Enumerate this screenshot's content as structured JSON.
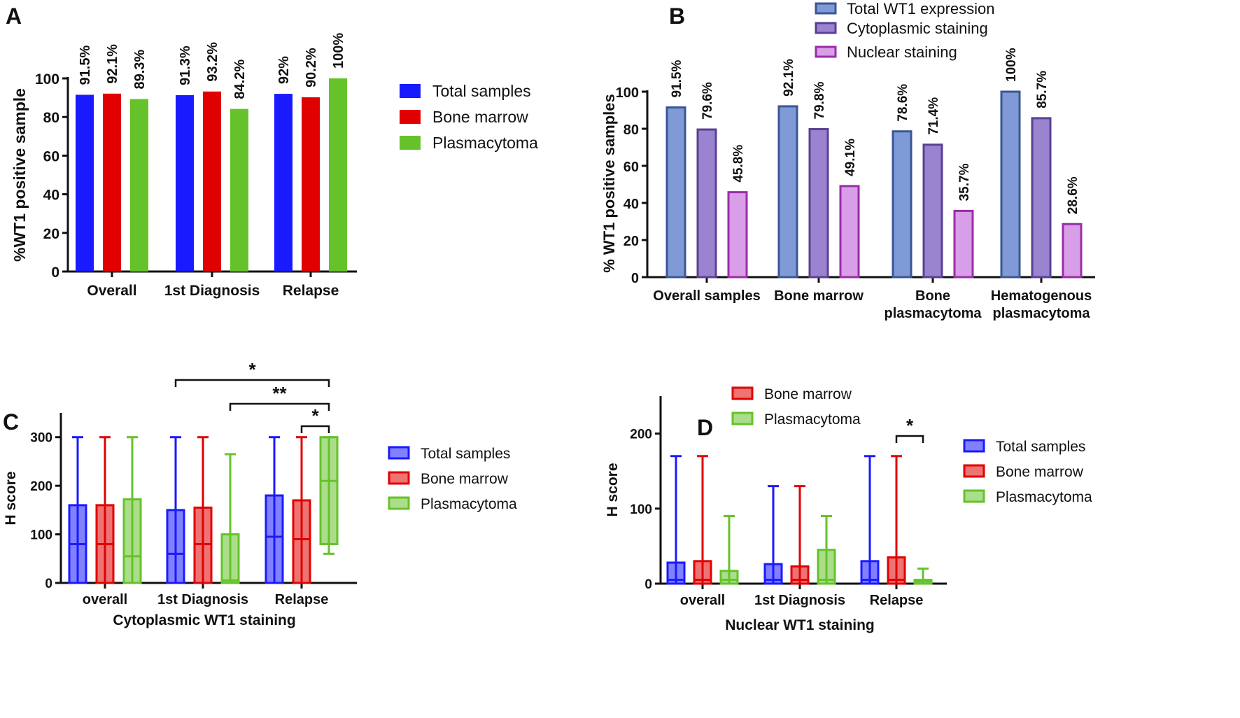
{
  "colors": {
    "total": "#1a1aff",
    "bone_marrow": "#e00000",
    "plasmacytoma": "#66c22a",
    "b_total": "#7f9ad6",
    "b_total_edge": "#3a5794",
    "b_cyto": "#9b84cf",
    "b_cyto_edge": "#5a3f94",
    "b_nuc": "#d99ee8",
    "b_nuc_edge": "#9a2da8"
  },
  "chart_data": [
    {
      "panel": "A",
      "type": "bar",
      "ylabel": "%WT1 positive sample",
      "ylim": [
        0,
        100
      ],
      "yticks": [
        0,
        20,
        40,
        60,
        80,
        100
      ],
      "categories": [
        "Overall",
        "1st Diagnosis",
        "Relapse"
      ],
      "series": [
        {
          "name": "Total samples",
          "values": [
            91.5,
            91.3,
            92
          ],
          "labels": [
            "91.5%",
            "91.3%",
            "92%"
          ],
          "color": "#1a1aff"
        },
        {
          "name": "Bone marrow",
          "values": [
            92.1,
            93.2,
            90.2
          ],
          "labels": [
            "92.1%",
            "93.2%",
            "90.2%"
          ],
          "color": "#e00000"
        },
        {
          "name": "Plasmacytoma",
          "values": [
            89.3,
            84.2,
            100
          ],
          "labels": [
            "89.3%",
            "84.2%",
            "100%"
          ],
          "color": "#66c22a"
        }
      ],
      "legend": "right"
    },
    {
      "panel": "B",
      "type": "bar",
      "ylabel": "% WT1 positive samples",
      "ylim": [
        0,
        100
      ],
      "yticks": [
        0,
        20,
        40,
        60,
        80,
        100
      ],
      "categories": [
        [
          "Overall samples"
        ],
        [
          "Bone marrow"
        ],
        [
          "Bone",
          "plasmacytoma"
        ],
        [
          "Hematogenous",
          "plasmacytoma"
        ]
      ],
      "series": [
        {
          "name": "Total WT1 expression",
          "values": [
            91.5,
            92.1,
            78.6,
            100
          ],
          "labels": [
            "91.5%",
            "92.1%",
            "78.6%",
            "100%"
          ]
        },
        {
          "name": "Cytoplasmic staining",
          "values": [
            79.6,
            79.8,
            71.4,
            85.7
          ],
          "labels": [
            "79.6%",
            "79.8%",
            "71.4%",
            "85.7%"
          ]
        },
        {
          "name": "Nuclear staining",
          "values": [
            45.8,
            49.1,
            35.7,
            28.6
          ],
          "labels": [
            "45.8%",
            "49.1%",
            "35.7%",
            "28.6%"
          ]
        }
      ],
      "legend": "top"
    },
    {
      "panel": "C",
      "type": "box",
      "xlabel": "Cytoplasmic WT1 staining",
      "ylabel": "H score",
      "ylim": [
        0,
        350
      ],
      "yticks": [
        0,
        100,
        200,
        300
      ],
      "categories": [
        "overall",
        "1st Diagnosis",
        "Relapse"
      ],
      "series": [
        {
          "name": "Total samples",
          "boxes": [
            {
              "min": 0,
              "q1": 0,
              "median": 80,
              "q3": 160,
              "max": 300
            },
            {
              "min": 0,
              "q1": 0,
              "median": 60,
              "q3": 150,
              "max": 300
            },
            {
              "min": 0,
              "q1": 0,
              "median": 95,
              "q3": 180,
              "max": 300
            }
          ]
        },
        {
          "name": "Bone marrow",
          "boxes": [
            {
              "min": 0,
              "q1": 0,
              "median": 80,
              "q3": 160,
              "max": 300
            },
            {
              "min": 0,
              "q1": 0,
              "median": 80,
              "q3": 155,
              "max": 300
            },
            {
              "min": 0,
              "q1": 0,
              "median": 90,
              "q3": 170,
              "max": 300
            }
          ]
        },
        {
          "name": "Plasmacytoma",
          "boxes": [
            {
              "min": 0,
              "q1": 0,
              "median": 55,
              "q3": 172,
              "max": 300
            },
            {
              "min": 0,
              "q1": 0,
              "median": 5,
              "q3": 100,
              "max": 265
            },
            {
              "min": 60,
              "q1": 80,
              "median": 210,
              "q3": 300,
              "max": 300
            }
          ]
        }
      ],
      "significance": [
        {
          "from": "1st Diagnosis / Total samples",
          "to": "Relapse / Plasmacytoma",
          "label": "*"
        },
        {
          "from": "1st Diagnosis / Plasmacytoma",
          "to": "Relapse / Plasmacytoma",
          "label": "**"
        },
        {
          "from": "Relapse / Bone marrow",
          "to": "Relapse / Plasmacytoma",
          "label": "*"
        }
      ],
      "legend": "right"
    },
    {
      "panel": "D",
      "type": "box",
      "xlabel": "Nuclear WT1 staining",
      "ylabel": "H score",
      "ylim": [
        0,
        250
      ],
      "yticks": [
        0,
        100,
        200
      ],
      "categories": [
        "overall",
        "1st Diagnosis",
        "Relapse"
      ],
      "series": [
        {
          "name": "Total samples",
          "boxes": [
            {
              "min": 0,
              "q1": 0,
              "median": 5,
              "q3": 28,
              "max": 170
            },
            {
              "min": 0,
              "q1": 0,
              "median": 5,
              "q3": 26,
              "max": 130
            },
            {
              "min": 0,
              "q1": 0,
              "median": 5,
              "q3": 30,
              "max": 170
            }
          ]
        },
        {
          "name": "Bone marrow",
          "boxes": [
            {
              "min": 0,
              "q1": 0,
              "median": 5,
              "q3": 30,
              "max": 170
            },
            {
              "min": 0,
              "q1": 0,
              "median": 5,
              "q3": 23,
              "max": 130
            },
            {
              "min": 0,
              "q1": 0,
              "median": 5,
              "q3": 35,
              "max": 170
            }
          ]
        },
        {
          "name": "Plasmacytoma",
          "boxes": [
            {
              "min": 0,
              "q1": 0,
              "median": 5,
              "q3": 17,
              "max": 90
            },
            {
              "min": 0,
              "q1": 0,
              "median": 5,
              "q3": 45,
              "max": 90
            },
            {
              "min": 0,
              "q1": 0,
              "median": 3,
              "q3": 5,
              "max": 20
            }
          ]
        }
      ],
      "significance": [
        {
          "from": "Relapse / Bone marrow",
          "to": "Relapse / Plasmacytoma",
          "label": "*"
        }
      ],
      "legend": "top and right"
    }
  ],
  "panel_letters": [
    "A",
    "B",
    "C",
    "D"
  ]
}
